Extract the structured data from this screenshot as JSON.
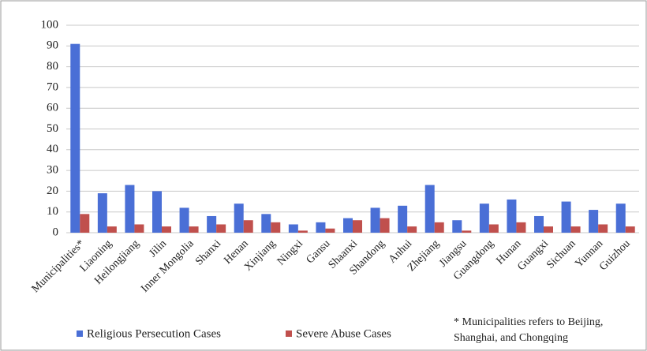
{
  "chart_data": {
    "type": "bar",
    "categories": [
      "Municipalities*",
      "Liaoning",
      "Heilongjiang",
      "Jilin",
      "Inner Mongolia",
      "Shanxi",
      "Henan",
      "Xinjiang",
      "Ningxi",
      "Gansu",
      "Shaanxi",
      "Shandong",
      "Anhui",
      "Zhejiang",
      "Jiangsu",
      "Guangdong",
      "Hunan",
      "Guangxi",
      "Sichuan",
      "Yunnan",
      "Guizhou"
    ],
    "series": [
      {
        "name": "Religious Persecution Cases",
        "color": "#4a6fd6",
        "values": [
          91,
          19,
          23,
          20,
          12,
          8,
          14,
          9,
          4,
          5,
          7,
          12,
          13,
          23,
          6,
          14,
          16,
          8,
          15,
          11,
          14
        ]
      },
      {
        "name": "Severe Abuse Cases",
        "color": "#c0504d",
        "values": [
          9,
          3,
          4,
          3,
          3,
          4,
          6,
          5,
          1,
          2,
          6,
          7,
          3,
          5,
          1,
          4,
          5,
          3,
          3,
          4,
          3
        ]
      }
    ],
    "ylim": [
      0,
      100
    ],
    "yticks": [
      0,
      10,
      20,
      30,
      40,
      50,
      60,
      70,
      80,
      90,
      100
    ],
    "grid": true,
    "legend": "bottom",
    "annotation": [
      "* Municipalities refers to Beijing,",
      "Shanghai, and Chongqing"
    ]
  }
}
